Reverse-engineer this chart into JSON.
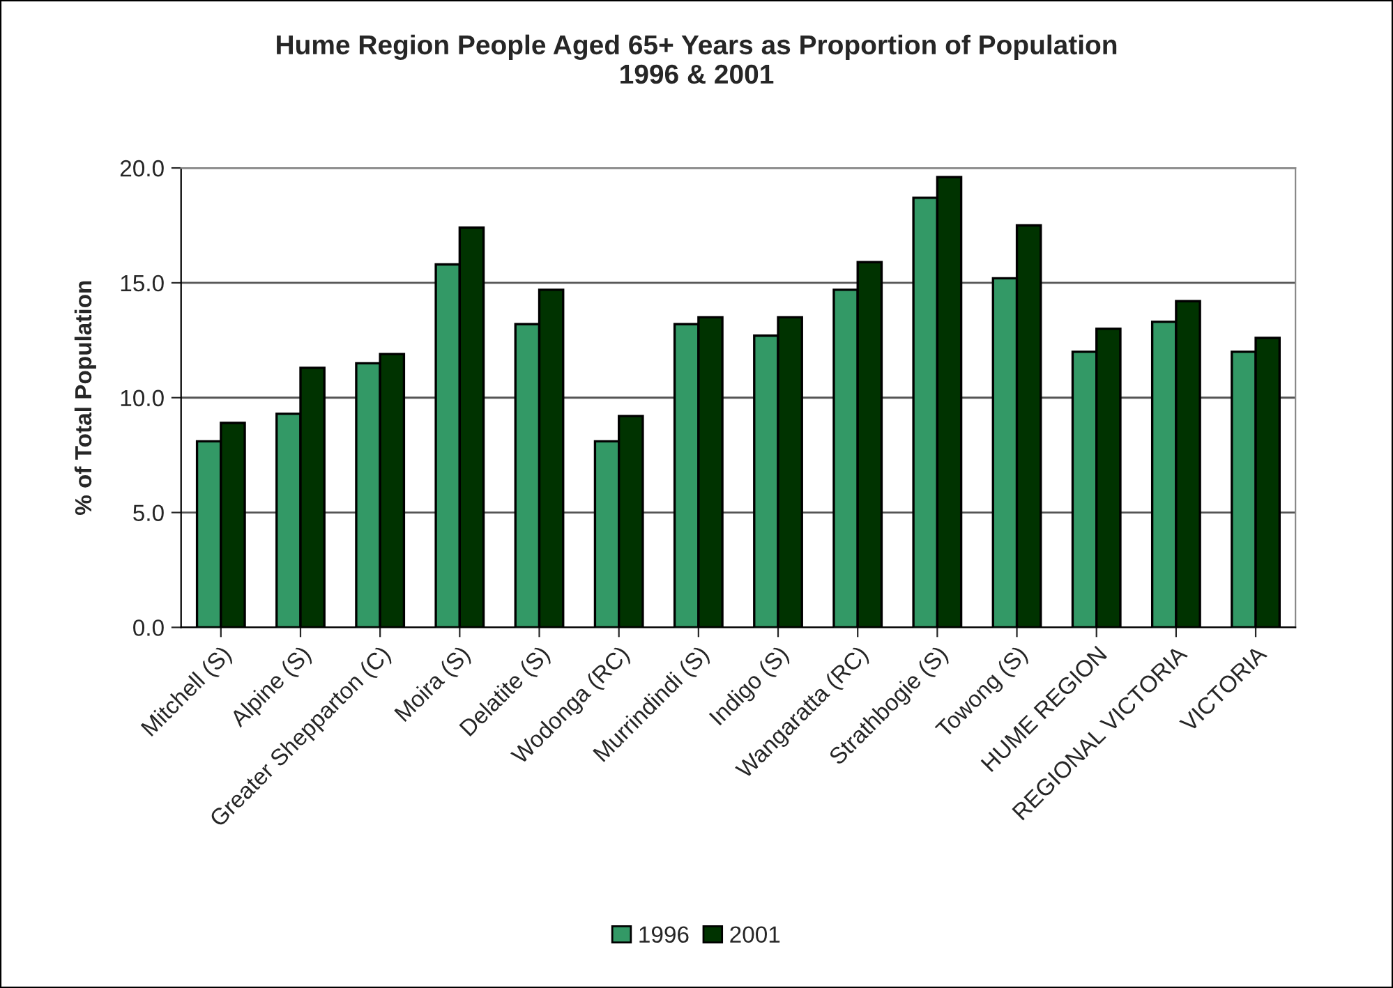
{
  "chart_data": {
    "type": "bar",
    "title": "Hume Region People Aged 65+ Years as Proportion of Population\n1996 & 2001",
    "ylabel": "% of Total Population",
    "categories": [
      "Mitchell (S)",
      "Alpine (S)",
      "Greater Shepparton (C)",
      "Moira (S)",
      "Delatite (S)",
      "Wodonga (RC)",
      "Murrindindi (S)",
      "Indigo (S)",
      "Wangaratta (RC)",
      "Strathbogie (S)",
      "Towong (S)",
      "HUME REGION",
      "REGIONAL VICTORIA",
      "VICTORIA"
    ],
    "series": [
      {
        "name": "1996",
        "color": "#339966",
        "values": [
          8.1,
          9.3,
          11.5,
          15.8,
          13.2,
          8.1,
          13.2,
          12.7,
          14.7,
          18.7,
          15.2,
          12.0,
          13.3,
          12.0
        ]
      },
      {
        "name": "2001",
        "color": "#003300",
        "values": [
          8.9,
          11.3,
          11.9,
          17.4,
          14.7,
          9.2,
          13.5,
          13.5,
          15.9,
          19.6,
          17.5,
          13.0,
          14.2,
          12.6
        ]
      }
    ],
    "ylim": [
      0,
      20
    ],
    "yticks": [
      {
        "value": 0,
        "label": "0.0"
      },
      {
        "value": 5,
        "label": "5.0"
      },
      {
        "value": 10,
        "label": "10.0"
      },
      {
        "value": 15,
        "label": "15.0"
      },
      {
        "value": 20,
        "label": "20.0"
      }
    ],
    "grid": "y",
    "legend": "bottom"
  }
}
